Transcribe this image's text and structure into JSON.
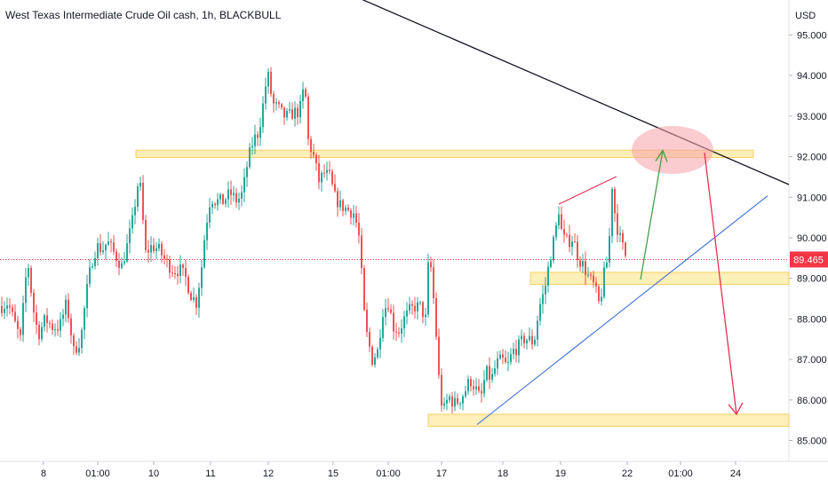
{
  "chart_data": {
    "type": "candlestick",
    "title": "West Texas Intermediate Crude Oil cash, 1h, BLACKBULL",
    "currency": "USD",
    "ylim": [
      84.8,
      95.35
    ],
    "y_ticks": [
      "95.000",
      "94.000",
      "93.000",
      "92.000",
      "91.000",
      "90.000",
      "89.000",
      "88.000",
      "87.000",
      "86.000",
      "85.000"
    ],
    "x_ticks": [
      "8",
      "01:00",
      "10",
      "11",
      "12",
      "15",
      "01:00",
      "17",
      "18",
      "19",
      "22",
      "01:00",
      "24"
    ],
    "last_price": "89.465",
    "last_price_value": 89.465,
    "colors": {
      "up": "#26a69a",
      "down": "#ef5350",
      "zone": "#ffe792",
      "zone_border": "#f0b000",
      "trend": "#131722",
      "support": "#3d6fd9",
      "arrow_up": "#43a047",
      "arrow_down": "#e53050",
      "ellipse": "#f6a0a8",
      "price_tag": "#f23645"
    },
    "path": [
      [
        0,
        88.3
      ],
      [
        8,
        88.4
      ],
      [
        14,
        88.0
      ],
      [
        22,
        87.5
      ],
      [
        30,
        89.5
      ],
      [
        36,
        88.3
      ],
      [
        42,
        87.6
      ],
      [
        50,
        88.0
      ],
      [
        58,
        87.8
      ],
      [
        66,
        87.8
      ],
      [
        74,
        88.4
      ],
      [
        82,
        87.2
      ],
      [
        90,
        87.5
      ],
      [
        96,
        88.6
      ],
      [
        102,
        89.4
      ],
      [
        108,
        89.8
      ],
      [
        114,
        89.7
      ],
      [
        120,
        89.9
      ],
      [
        128,
        89.6
      ],
      [
        136,
        89.3
      ],
      [
        142,
        89.8
      ],
      [
        148,
        90.4
      ],
      [
        154,
        91.3
      ],
      [
        158,
        91.2
      ],
      [
        162,
        89.6
      ],
      [
        170,
        89.8
      ],
      [
        178,
        89.7
      ],
      [
        186,
        89.4
      ],
      [
        194,
        89.2
      ],
      [
        202,
        89.2
      ],
      [
        208,
        89.0
      ],
      [
        214,
        88.6
      ],
      [
        220,
        88.4
      ],
      [
        226,
        89.3
      ],
      [
        230,
        90.2
      ],
      [
        236,
        91.0
      ],
      [
        242,
        90.9
      ],
      [
        250,
        90.9
      ],
      [
        258,
        91.1
      ],
      [
        266,
        90.9
      ],
      [
        272,
        91.1
      ],
      [
        278,
        91.9
      ],
      [
        284,
        92.4
      ],
      [
        290,
        92.6
      ],
      [
        296,
        93.4
      ],
      [
        300,
        94.1
      ],
      [
        306,
        93.3
      ],
      [
        312,
        93.2
      ],
      [
        318,
        93.0
      ],
      [
        324,
        93.0
      ],
      [
        330,
        93.1
      ],
      [
        336,
        93.1
      ],
      [
        342,
        93.8
      ],
      [
        346,
        92.4
      ],
      [
        352,
        92.0
      ],
      [
        358,
        91.4
      ],
      [
        364,
        91.6
      ],
      [
        370,
        91.5
      ],
      [
        376,
        91.0
      ],
      [
        382,
        90.8
      ],
      [
        390,
        90.7
      ],
      [
        398,
        90.6
      ],
      [
        404,
        89.9
      ],
      [
        408,
        88.3
      ],
      [
        412,
        87.6
      ],
      [
        418,
        87.0
      ],
      [
        424,
        87.2
      ],
      [
        430,
        88.2
      ],
      [
        436,
        88.4
      ],
      [
        442,
        87.8
      ],
      [
        448,
        87.7
      ],
      [
        454,
        88.0
      ],
      [
        460,
        88.2
      ],
      [
        466,
        88.3
      ],
      [
        472,
        88.3
      ],
      [
        478,
        88.0
      ],
      [
        482,
        89.7
      ],
      [
        486,
        88.8
      ],
      [
        490,
        87.6
      ],
      [
        494,
        86.2
      ],
      [
        498,
        85.7
      ],
      [
        504,
        86.1
      ],
      [
        510,
        85.9
      ],
      [
        516,
        86.0
      ],
      [
        522,
        86.2
      ],
      [
        528,
        86.5
      ],
      [
        534,
        86.3
      ],
      [
        540,
        86.0
      ],
      [
        546,
        86.7
      ],
      [
        552,
        86.5
      ],
      [
        558,
        86.9
      ],
      [
        564,
        87.0
      ],
      [
        570,
        86.8
      ],
      [
        576,
        87.2
      ],
      [
        582,
        87.3
      ],
      [
        588,
        87.5
      ],
      [
        594,
        87.5
      ],
      [
        600,
        87.4
      ],
      [
        606,
        88.3
      ],
      [
        612,
        88.7
      ],
      [
        618,
        89.5
      ],
      [
        624,
        90.1
      ],
      [
        628,
        90.7
      ],
      [
        632,
        90.0
      ],
      [
        638,
        89.9
      ],
      [
        644,
        90.0
      ],
      [
        650,
        89.5
      ],
      [
        656,
        89.3
      ],
      [
        662,
        89.0
      ],
      [
        668,
        88.8
      ],
      [
        674,
        88.3
      ],
      [
        678,
        89.0
      ],
      [
        684,
        89.6
      ],
      [
        688,
        91.3
      ],
      [
        692,
        90.4
      ],
      [
        698,
        89.9
      ],
      [
        704,
        89.5
      ]
    ],
    "annotations": {
      "resistance_zone": {
        "from": 91.98,
        "to": 92.16
      },
      "mid_zone": {
        "from": 88.85,
        "to": 89.15
      },
      "support_zone": {
        "from": 85.35,
        "to": 85.65
      },
      "resistance_top_line": {
        "p1": {
          "x": "8",
          "y": 95.8
        },
        "p2": {
          "x": "24",
          "y": 91.4
        }
      },
      "rising_support_line": {
        "p1": {
          "x": "17",
          "y": 85.35
        },
        "p2": {
          "x": "24",
          "y": 91.1
        }
      },
      "red_channel_line": {
        "p1": {
          "x": "19",
          "y": 90.85
        },
        "p2": {
          "x": "22",
          "y": 91.6
        }
      },
      "green_arrow_target": 92.2,
      "red_arrow_target": 85.65
    }
  }
}
